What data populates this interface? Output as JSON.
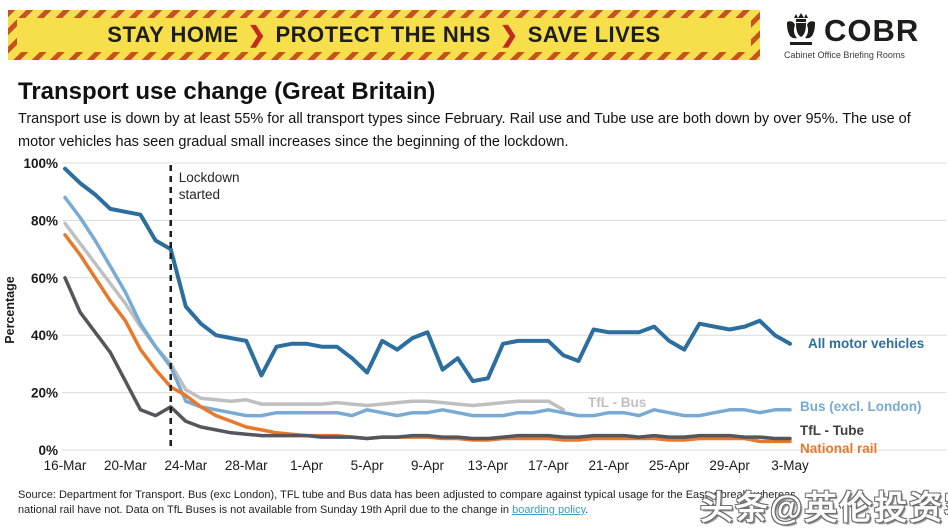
{
  "banner": {
    "segments": [
      "STAY HOME",
      "PROTECT THE NHS",
      "SAVE LIVES"
    ],
    "chevron": "❯",
    "bg_color": "#f6df4a",
    "hatch_color": "#c8521d"
  },
  "logo": {
    "name": "COBR",
    "subtitle": "Cabinet Office Briefing Rooms"
  },
  "page": {
    "title": "Transport use change (Great Britain)",
    "subtitle": "Transport use is down by at least 55% for all transport types since February. Rail use and Tube use are both down by over 95%. The use of motor vehicles has seen gradual small increases since the beginning of the lockdown."
  },
  "chart_data": {
    "type": "line",
    "ylabel": "Percentage",
    "y_ticks": [
      0,
      20,
      40,
      60,
      80,
      100
    ],
    "y_tick_suffix": "%",
    "ylim": [
      0,
      100
    ],
    "grid": true,
    "x_tick_labels": [
      "16-Mar",
      "20-Mar",
      "24-Mar",
      "28-Mar",
      "1-Apr",
      "5-Apr",
      "9-Apr",
      "13-Apr",
      "17-Apr",
      "21-Apr",
      "25-Apr",
      "29-Apr",
      "3-May"
    ],
    "x_tick_day_indices": [
      0,
      4,
      8,
      12,
      16,
      20,
      24,
      28,
      32,
      36,
      40,
      44,
      48
    ],
    "n_days": 49,
    "annotation": {
      "label_line1": "Lockdown",
      "label_line2": "started",
      "day_index": 7
    },
    "series": [
      {
        "name": "TfL - Bus",
        "label": "TfL - Bus",
        "color": "#bfbfbf",
        "values": [
          79,
          72,
          65,
          58,
          51,
          43,
          36,
          30,
          21,
          18,
          17.5,
          17,
          17.5,
          16,
          16,
          16,
          16,
          16,
          16.5,
          16,
          15.5,
          16,
          16.5,
          17,
          17,
          16.5,
          16,
          15.5,
          16,
          16.5,
          17,
          17,
          17,
          14,
          null,
          null,
          null,
          null,
          null,
          null,
          null,
          null,
          null,
          null,
          null,
          null,
          null,
          null,
          null
        ]
      },
      {
        "name": "Bus (excl. London)",
        "label": "Bus (excl. London)",
        "color": "#78abd3",
        "values": [
          88,
          81,
          73,
          64,
          55,
          44,
          36,
          29,
          17,
          15,
          14,
          13,
          12,
          12,
          13,
          13,
          13,
          13,
          13,
          12,
          14,
          13,
          12,
          13,
          13,
          14,
          13,
          12,
          12,
          12,
          13,
          13,
          14,
          13,
          12,
          12,
          13,
          13,
          12,
          14,
          13,
          12,
          12,
          13,
          14,
          14,
          13,
          14,
          14
        ]
      },
      {
        "name": "National rail",
        "label": "National rail",
        "color": "#e8792b",
        "values": [
          75,
          68,
          60,
          52,
          45,
          35,
          28,
          22,
          19,
          15,
          12,
          10,
          8,
          7,
          6,
          5.5,
          5,
          5,
          5,
          4.5,
          4,
          4.5,
          4.5,
          4.5,
          4.5,
          4,
          4,
          3.5,
          3.5,
          4,
          4,
          4,
          4,
          3.5,
          3.5,
          4,
          4,
          4,
          4,
          4,
          3.5,
          3.5,
          4,
          4,
          4,
          4,
          3,
          3,
          3
        ]
      },
      {
        "name": "TfL - Tube",
        "label": "TfL - Tube",
        "color": "#54565b",
        "values": [
          60,
          48,
          41,
          34,
          24,
          14,
          12,
          15,
          10,
          8,
          7,
          6,
          5.5,
          5,
          5,
          5,
          5,
          4.5,
          4.5,
          4.5,
          4,
          4.5,
          4.5,
          5,
          5,
          4.5,
          4.5,
          4,
          4,
          4.5,
          5,
          5,
          5,
          4.5,
          4.5,
          5,
          5,
          5,
          4.5,
          5,
          4.5,
          4.5,
          5,
          5,
          5,
          4.5,
          4.5,
          4,
          4
        ]
      },
      {
        "name": "All motor vehicles",
        "label": "All motor vehicles",
        "color": "#2c6e9e",
        "values": [
          98,
          93,
          89,
          84,
          83,
          82,
          73,
          70,
          50,
          44,
          40,
          39,
          38,
          26,
          36,
          37,
          37,
          36,
          36,
          32,
          27,
          38,
          35,
          39,
          41,
          28,
          32,
          24,
          25,
          37,
          38,
          38,
          38,
          33,
          31,
          42,
          41,
          41,
          41,
          43,
          38,
          35,
          44,
          43,
          42,
          43,
          45,
          40,
          37
        ]
      }
    ]
  },
  "source": {
    "line1": "Source: Department for Transport. Bus (exc London), TFL tube and Bus data has been adjusted to compare against typical usage for the Easter break, whereas",
    "line2_before_link": "national rail have not. Data on TfL Buses is not available from Sunday 19th April due to the change in ",
    "link_text": "boarding policy",
    "line2_after_link": "."
  },
  "watermark": {
    "text": "头条@英伦投资客"
  }
}
